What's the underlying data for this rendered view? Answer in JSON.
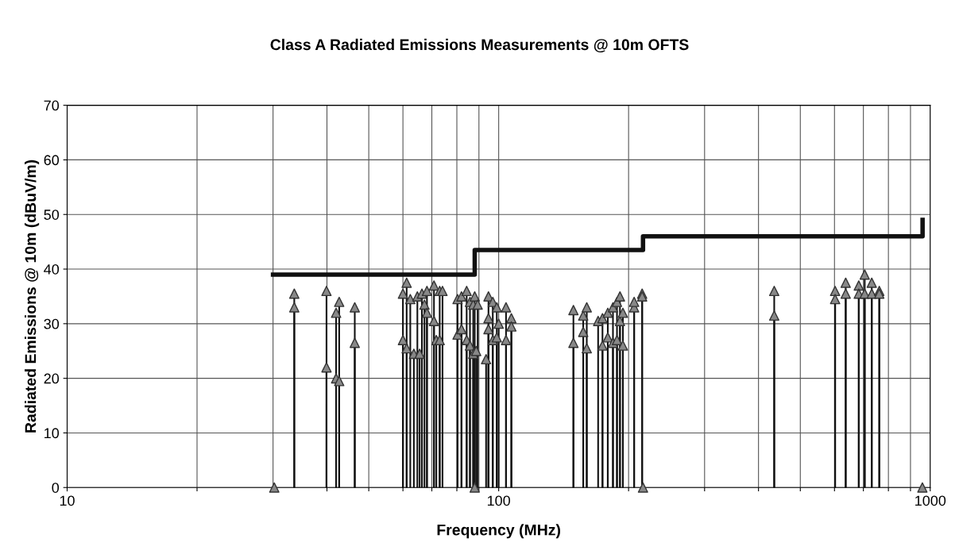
{
  "chart_data": {
    "type": "lollipop",
    "title": "Class A Radiated Emissions Measurements @ 10m OFTS",
    "xlabel": "Frequency (MHz)",
    "ylabel": "Radiated Emissions @ 10m (dBuV/m)",
    "log": "x",
    "grid": true,
    "marker": "triangle",
    "xlim": [
      10,
      1000
    ],
    "ylim": [
      0,
      70
    ],
    "xticks": [
      10,
      {
        "value": 20,
        "label": null
      },
      {
        "value": 30,
        "label": null
      },
      {
        "value": 40,
        "label": null
      },
      {
        "value": 50,
        "label": null
      },
      {
        "value": 60,
        "label": null
      },
      {
        "value": 70,
        "label": null
      },
      {
        "value": 80,
        "label": null
      },
      {
        "value": 90,
        "label": null
      },
      100,
      {
        "value": 200,
        "label": null
      },
      {
        "value": 300,
        "label": null
      },
      {
        "value": 400,
        "label": null
      },
      {
        "value": 500,
        "label": null
      },
      {
        "value": 600,
        "label": null
      },
      {
        "value": 700,
        "label": null
      },
      {
        "value": 800,
        "label": null
      },
      {
        "value": 900,
        "label": null
      },
      1000
    ],
    "yticks": [
      0,
      10,
      20,
      30,
      40,
      50,
      60,
      70
    ],
    "series": [
      {
        "type": "line",
        "marker": "none",
        "color": "#111111",
        "x": [
          30,
          88,
          88,
          216,
          216,
          960,
          960
        ],
        "values": [
          39,
          39,
          43.5,
          43.5,
          46,
          46,
          49
        ]
      },
      {
        "color": "#888888",
        "x": [
          30.2,
          33.6,
          33.6,
          39.9,
          39.9,
          42.0,
          42.0,
          42.7,
          42.7,
          46.4,
          46.4,
          60.0,
          60.0,
          61.2,
          61.2,
          62.4,
          63.6,
          64.8,
          65.6,
          66.4,
          67.3,
          68.2,
          68.2,
          70.8,
          70.8,
          71.7,
          73.0,
          73.0,
          74.1,
          80.3,
          80.3,
          82.0,
          82.0,
          84.3,
          84.3,
          85.8,
          85.8,
          87.3,
          87.3,
          88.0,
          88.0,
          88.7,
          89.4,
          93.5,
          94.7,
          94.7,
          94.7,
          96.9,
          96.9,
          99.0,
          99.0,
          100,
          104,
          104,
          107,
          107,
          149,
          149,
          157,
          157,
          160,
          160,
          170,
          174,
          174,
          179,
          179,
          184,
          184,
          188,
          188,
          191,
          191,
          194,
          194,
          206,
          206,
          215,
          215,
          216,
          435,
          435,
          602,
          602,
          637,
          637,
          683,
          683,
          705,
          705,
          732,
          732,
          762,
          762,
          959
        ],
        "values": [
          0,
          35.5,
          33,
          36,
          22,
          32,
          20,
          34,
          19.5,
          33,
          26.5,
          35.5,
          27,
          37.5,
          25.5,
          34.5,
          24.5,
          35,
          24.5,
          35.5,
          33.5,
          36,
          32,
          37,
          30.5,
          27,
          36,
          27,
          36,
          28,
          34.5,
          35,
          29,
          36,
          27,
          34,
          26,
          33.5,
          24.5,
          0,
          35,
          25,
          33.5,
          23.5,
          35,
          29,
          31,
          34,
          27,
          33,
          27.5,
          30,
          33,
          27,
          31,
          29.5,
          32.5,
          26.5,
          31.5,
          28.5,
          33,
          25.5,
          30.5,
          26,
          31,
          27.5,
          32,
          33,
          26.5,
          34,
          27,
          35,
          30.5,
          32,
          26,
          33,
          34,
          35.5,
          35,
          0,
          36,
          31.5,
          36,
          34.5,
          37.5,
          35.5,
          37,
          35.5,
          39,
          35.5,
          37.5,
          35.5,
          36,
          35.5,
          0
        ]
      }
    ]
  }
}
